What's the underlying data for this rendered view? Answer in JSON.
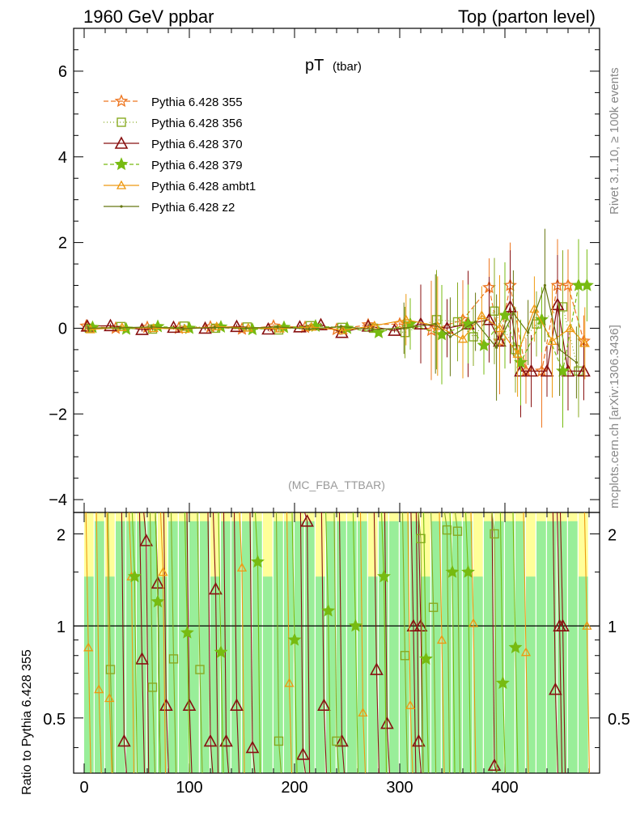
{
  "header": {
    "left": "1960 GeV ppbar",
    "right": "Top (parton level)"
  },
  "side_labels": {
    "rivet": "Rivet 3.1.10, ≥ 100k events",
    "mcplots": "mcplots.cern.ch [arXiv:1306.3436]"
  },
  "chart_data": [
    {
      "type": "line",
      "title": "pT",
      "title_sub": "(tbar)",
      "watermark": "(MC_FBA_TTBAR)",
      "xlim": [
        -10,
        490
      ],
      "ylim": [
        -4.3,
        7.0
      ],
      "x_ticks": [
        0,
        100,
        200,
        300,
        400
      ],
      "y_ticks": [
        -4,
        -2,
        0,
        2,
        4,
        6
      ],
      "y_tick_labels": [
        "−4",
        "−2",
        "0",
        "2",
        "4",
        "6"
      ],
      "legend_position": "top-left",
      "series": [
        {
          "name": "Pythia 6.428 355",
          "color": "#ee7722",
          "dash": "6,3",
          "marker": "star-open",
          "x": [
            2,
            30,
            60,
            90,
            120,
            150,
            180,
            210,
            240,
            270,
            300,
            330,
            360,
            385,
            395,
            405,
            420,
            435,
            450,
            460,
            475
          ],
          "y": [
            0.05,
            0.0,
            0.02,
            0.0,
            0.03,
            -0.02,
            0.05,
            0.02,
            -0.03,
            0.08,
            0.1,
            -0.05,
            0.2,
            0.95,
            -0.3,
            1.0,
            -1.0,
            -1.0,
            1.0,
            1.0,
            -0.3
          ]
        },
        {
          "name": "Pythia 6.428 356",
          "color": "#88aa22",
          "dash": "1,3",
          "marker": "square-open",
          "x": [
            5,
            35,
            65,
            95,
            125,
            155,
            185,
            215,
            245,
            275,
            305,
            335,
            355,
            370,
            390,
            410,
            430,
            455,
            470
          ],
          "y": [
            0.0,
            0.04,
            -0.02,
            0.05,
            0.0,
            0.03,
            -0.04,
            0.06,
            0.02,
            0.0,
            -0.1,
            0.2,
            0.15,
            -0.2,
            0.4,
            -0.5,
            0.1,
            0.5,
            -1.0
          ]
        },
        {
          "name": "Pythia 6.428 370",
          "color": "#881111",
          "dash": "",
          "marker": "triangle-open",
          "x": [
            3,
            25,
            55,
            85,
            115,
            145,
            175,
            205,
            225,
            245,
            270,
            295,
            320,
            345,
            365,
            385,
            395,
            405,
            415,
            425,
            440,
            450,
            460,
            475
          ],
          "y": [
            0.05,
            0.06,
            -0.03,
            0.02,
            0.0,
            0.04,
            -0.02,
            0.03,
            0.08,
            -0.1,
            0.05,
            -0.05,
            0.1,
            0.0,
            0.1,
            0.2,
            -0.3,
            0.5,
            -1.0,
            -1.0,
            -1.0,
            0.55,
            -1.0,
            -1.0
          ]
        },
        {
          "name": "Pythia 6.428 379",
          "color": "#77bb11",
          "dash": "5,3",
          "marker": "star",
          "x": [
            8,
            40,
            70,
            100,
            130,
            160,
            190,
            220,
            250,
            280,
            310,
            340,
            365,
            380,
            400,
            415,
            435,
            455,
            470,
            478
          ],
          "y": [
            0.02,
            -0.02,
            0.04,
            0.0,
            0.03,
            -0.03,
            0.02,
            0.05,
            0.0,
            -0.1,
            0.1,
            -0.15,
            0.1,
            -0.4,
            0.3,
            -0.8,
            0.2,
            -1.0,
            1.0,
            1.0
          ]
        },
        {
          "name": "Pythia 6.428 ambt1",
          "color": "#ee9911",
          "dash": "",
          "marker": "triangle-open-small",
          "x": [
            6,
            36,
            66,
            96,
            126,
            156,
            186,
            216,
            246,
            276,
            306,
            336,
            360,
            378,
            395,
            412,
            428,
            445,
            462,
            476
          ],
          "y": [
            -0.03,
            0.02,
            0.0,
            -0.02,
            0.04,
            0.01,
            -0.01,
            0.03,
            -0.05,
            0.06,
            0.2,
            0.05,
            -0.25,
            0.3,
            0.0,
            -0.6,
            0.45,
            -0.3,
            0.0,
            -0.35
          ]
        },
        {
          "name": "Pythia 6.428 z2",
          "color": "#667711",
          "dash": "",
          "marker": "dot",
          "x": [
            4,
            34,
            64,
            94,
            124,
            154,
            184,
            214,
            244,
            274,
            304,
            334,
            348,
            372,
            392,
            408,
            422,
            438,
            452,
            468
          ],
          "y": [
            0.0,
            0.01,
            0.03,
            -0.01,
            0.02,
            0.0,
            0.03,
            -0.02,
            0.04,
            -0.03,
            0.0,
            0.1,
            -0.2,
            0.15,
            -0.45,
            0.35,
            -0.1,
            1.0,
            -0.5,
            -0.8
          ]
        }
      ]
    },
    {
      "type": "line",
      "ylabel": "Ratio to Pythia 6.428 355",
      "xlim": [
        -10,
        490
      ],
      "ylim": [
        0.33,
        2.35
      ],
      "x_ticks": [
        0,
        100,
        200,
        300,
        400
      ],
      "x_tick_labels": [
        "0",
        "100",
        "200",
        "300",
        "400"
      ],
      "y_ticks": [
        0.5,
        1,
        2
      ],
      "y_tick_labels": [
        "0.5",
        "1",
        "2"
      ],
      "reference_line": 1,
      "band_colors": [
        "#ffff99",
        "#99ee99"
      ],
      "series": [
        {
          "name": "Pythia 6.428 370",
          "color": "#881111",
          "marker": "triangle-open",
          "x": [
            38,
            55,
            59,
            70,
            78,
            100,
            120,
            125,
            135,
            145,
            160,
            208,
            212,
            228,
            245,
            278,
            288,
            313,
            318,
            320,
            390,
            448,
            452,
            455
          ],
          "y": [
            0.42,
            0.78,
            1.9,
            1.38,
            0.55,
            0.55,
            0.42,
            1.32,
            0.42,
            0.55,
            0.4,
            0.38,
            2.2,
            0.55,
            0.42,
            0.72,
            0.48,
            1.0,
            0.42,
            1.0,
            0.35,
            0.62,
            1.0,
            1.0
          ]
        },
        {
          "name": "Pythia 6.428 356",
          "color": "#88aa22",
          "marker": "square-open",
          "x": [
            25,
            65,
            85,
            110,
            185,
            240,
            305,
            320,
            332,
            345,
            355,
            390
          ],
          "y": [
            0.72,
            0.63,
            0.78,
            0.72,
            0.42,
            0.42,
            0.8,
            1.93,
            1.15,
            2.06,
            2.04,
            2.0
          ]
        },
        {
          "name": "Pythia 6.428 ambt1",
          "color": "#ee9911",
          "marker": "triangle-open-small",
          "x": [
            4,
            14,
            24,
            45,
            75,
            150,
            195,
            265,
            310,
            340,
            370,
            420,
            478
          ],
          "y": [
            0.85,
            0.62,
            0.58,
            1.45,
            1.5,
            1.55,
            0.65,
            0.52,
            0.55,
            0.9,
            1.02,
            0.82,
            1.0
          ]
        },
        {
          "name": "Pythia 6.428 379",
          "color": "#77bb11",
          "marker": "star",
          "x": [
            48,
            70,
            98,
            130,
            165,
            200,
            232,
            258,
            285,
            325,
            350,
            365,
            398,
            410
          ],
          "y": [
            1.45,
            1.2,
            0.95,
            0.82,
            1.62,
            0.9,
            1.12,
            1.0,
            1.45,
            0.78,
            1.5,
            1.5,
            0.65,
            0.85
          ]
        }
      ]
    }
  ]
}
